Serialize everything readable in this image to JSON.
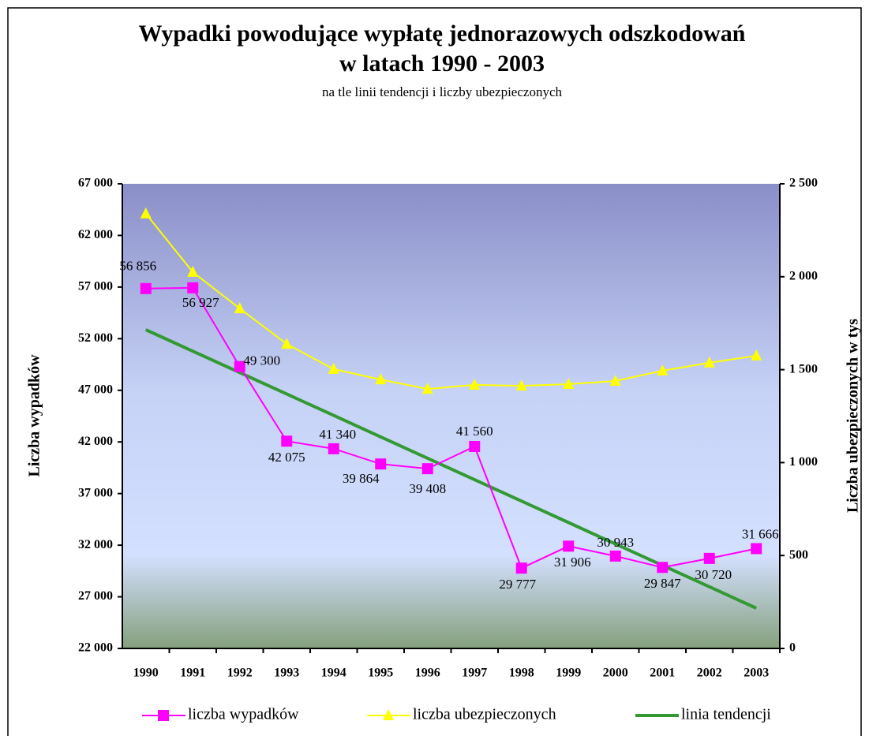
{
  "chart_data": {
    "type": "line",
    "title": "Wypadki  powodujące wypłatę jednorazowych odszkodowań",
    "title_line2": "w latach 1990 - 2003",
    "subtitle": "na tle linii tendencji i liczby ubezpieczonych",
    "y_label": "Liczba wypadków",
    "y2_label": "Liczba ubezpieczonych w tys",
    "categories": [
      "1990",
      "1991",
      "1992",
      "1993",
      "1994",
      "1995",
      "1996",
      "1997",
      "1998",
      "1999",
      "2000",
      "2001",
      "2002",
      "2003"
    ],
    "ylim": [
      22000,
      67000
    ],
    "yticks": [
      {
        "value": 22000,
        "label": "22 000"
      },
      {
        "value": 27000,
        "label": "27 000"
      },
      {
        "value": 32000,
        "label": "32 000"
      },
      {
        "value": 37000,
        "label": "37 000"
      },
      {
        "value": 42000,
        "label": "42 000"
      },
      {
        "value": 47000,
        "label": "47 000"
      },
      {
        "value": 52000,
        "label": "52 000"
      },
      {
        "value": 57000,
        "label": "57 000"
      },
      {
        "value": 62000,
        "label": "62 000"
      },
      {
        "value": 67000,
        "label": "67 000"
      }
    ],
    "y2lim": [
      0,
      2500
    ],
    "y2ticks": [
      0,
      500,
      {
        "value": 1000,
        "label": "1 000"
      },
      {
        "value": 1500,
        "label": "1 500"
      },
      {
        "value": 2000,
        "label": "2 000"
      },
      {
        "value": 2500,
        "label": "2 500"
      }
    ],
    "legend": "bottom",
    "series": [
      {
        "name": "liczba wypadków",
        "color": "#ff00ff",
        "marker": "square",
        "values": [
          56856,
          56927,
          49300,
          42075,
          41340,
          39864,
          39408,
          41560,
          29777,
          31906,
          30943,
          29847,
          30720,
          31666
        ],
        "value_labels": [
          "56 856",
          "56 927",
          "49 300",
          "42 075",
          "41 340",
          "39 864",
          "39 408",
          "41 560",
          "29 777",
          "31 906",
          "30 943",
          "29 847",
          "30 720",
          "31 666"
        ]
      },
      {
        "name": "liczba ubezpieczonych",
        "color": "#ffff00",
        "marker": "triangle",
        "axis": "y2",
        "values": [
          2339,
          2025,
          1829,
          1638,
          1503,
          1447,
          1396,
          1418,
          1413,
          1422,
          1439,
          1494,
          1537,
          1575
        ]
      },
      {
        "name": "linia tendencji",
        "color": "#339933",
        "marker": "none",
        "values": [
          52866,
          50791,
          48717,
          46642,
          44568,
          42493,
          40418,
          38344,
          36269,
          34195,
          32120,
          30045,
          27971,
          25896
        ]
      }
    ]
  }
}
